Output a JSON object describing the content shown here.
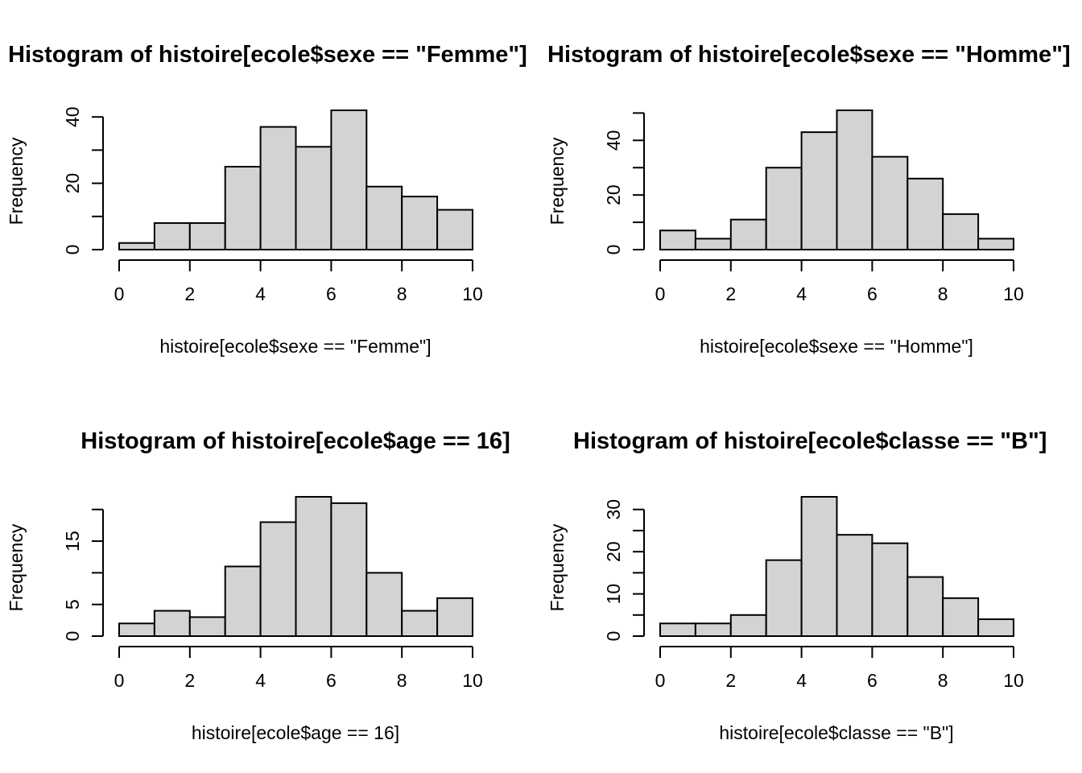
{
  "chart_data": [
    {
      "type": "bar",
      "title": "Histogram of histoire[ecole$sexe == \"Femme\"]",
      "xlabel": "histoire[ecole$sexe == \"Femme\"]",
      "ylabel": "Frequency",
      "bin_edges": [
        0,
        1,
        2,
        3,
        4,
        5,
        6,
        7,
        8,
        9,
        10
      ],
      "values": [
        2,
        8,
        8,
        25,
        37,
        31,
        42,
        19,
        16,
        12
      ],
      "xticks": [
        0,
        2,
        4,
        6,
        8,
        10
      ],
      "yticks": [
        0,
        10,
        20,
        30,
        40
      ],
      "ytick_labels": [
        "0",
        "",
        "20",
        "",
        "40"
      ],
      "xlim": [
        0,
        10
      ],
      "ylim": [
        0,
        42
      ],
      "grid": false
    },
    {
      "type": "bar",
      "title": "Histogram of histoire[ecole$sexe == \"Homme\"]",
      "xlabel": "histoire[ecole$sexe == \"Homme\"]",
      "ylabel": "Frequency",
      "bin_edges": [
        0,
        1,
        2,
        3,
        4,
        5,
        6,
        7,
        8,
        9,
        10
      ],
      "values": [
        7,
        4,
        11,
        30,
        43,
        51,
        34,
        26,
        13,
        4
      ],
      "xticks": [
        0,
        2,
        4,
        6,
        8,
        10
      ],
      "yticks": [
        0,
        10,
        20,
        30,
        40,
        50
      ],
      "ytick_labels": [
        "0",
        "",
        "20",
        "",
        "40",
        ""
      ],
      "xlim": [
        0,
        10
      ],
      "ylim": [
        0,
        51
      ],
      "grid": false
    },
    {
      "type": "bar",
      "title": "Histogram of histoire[ecole$age == 16]",
      "xlabel": "histoire[ecole$age == 16]",
      "ylabel": "Frequency",
      "bin_edges": [
        0,
        1,
        2,
        3,
        4,
        5,
        6,
        7,
        8,
        9,
        10
      ],
      "values": [
        2,
        4,
        3,
        11,
        18,
        22,
        21,
        10,
        4,
        6
      ],
      "xticks": [
        0,
        2,
        4,
        6,
        8,
        10
      ],
      "yticks": [
        0,
        5,
        10,
        15,
        20
      ],
      "ytick_labels": [
        "0",
        "5",
        "",
        "15",
        ""
      ],
      "xlim": [
        0,
        10
      ],
      "ylim": [
        0,
        22
      ],
      "grid": false
    },
    {
      "type": "bar",
      "title": "Histogram of histoire[ecole$classe == \"B\"]",
      "xlabel": "histoire[ecole$classe == \"B\"]",
      "ylabel": "Frequency",
      "bin_edges": [
        0,
        1,
        2,
        3,
        4,
        5,
        6,
        7,
        8,
        9,
        10
      ],
      "values": [
        3,
        3,
        5,
        18,
        33,
        24,
        22,
        14,
        9,
        4
      ],
      "xticks": [
        0,
        2,
        4,
        6,
        8,
        10
      ],
      "yticks": [
        0,
        5,
        10,
        15,
        20,
        25,
        30
      ],
      "ytick_labels": [
        "0",
        "",
        "10",
        "",
        "20",
        "",
        "30"
      ],
      "xlim": [
        0,
        10
      ],
      "ylim": [
        0,
        33
      ],
      "grid": false
    }
  ]
}
